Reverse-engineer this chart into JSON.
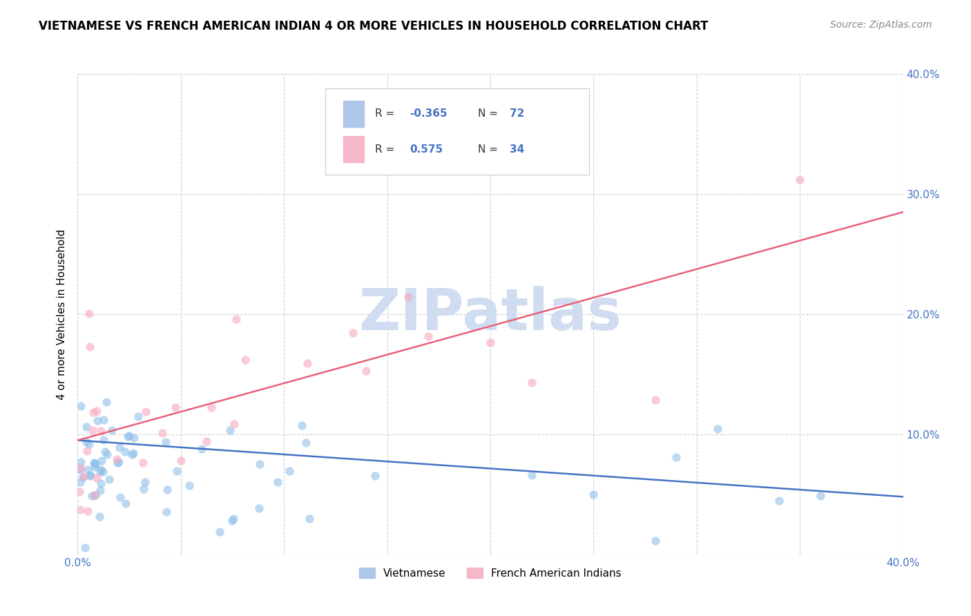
{
  "title": "VIETNAMESE VS FRENCH AMERICAN INDIAN 4 OR MORE VEHICLES IN HOUSEHOLD CORRELATION CHART",
  "source": "Source: ZipAtlas.com",
  "ylabel": "4 or more Vehicles in Household",
  "xlim": [
    0.0,
    0.4
  ],
  "ylim": [
    0.0,
    0.4
  ],
  "xticks": [
    0.0,
    0.05,
    0.1,
    0.15,
    0.2,
    0.25,
    0.3,
    0.35,
    0.4
  ],
  "yticks": [
    0.0,
    0.1,
    0.2,
    0.3,
    0.4
  ],
  "watermark": "ZIPatlas",
  "scatter_color_blue": "#90C0E8",
  "scatter_color_pink": "#F8A8C0",
  "line_color_blue": "#4472C4",
  "line_color_pink": "#E8607A",
  "scatter_alpha": 0.6,
  "scatter_size": 80,
  "title_fontsize": 12,
  "source_fontsize": 10,
  "label_fontsize": 11,
  "tick_fontsize": 11,
  "watermark_color": "#D0DCF0",
  "watermark_fontsize": 60,
  "grid_color": "#D0D0D0",
  "grid_linestyle": "--",
  "background_color": "#ffffff",
  "blue_line_start_y": 0.095,
  "blue_line_end_y": 0.048,
  "pink_line_start_y": 0.095,
  "pink_line_end_y": 0.285
}
